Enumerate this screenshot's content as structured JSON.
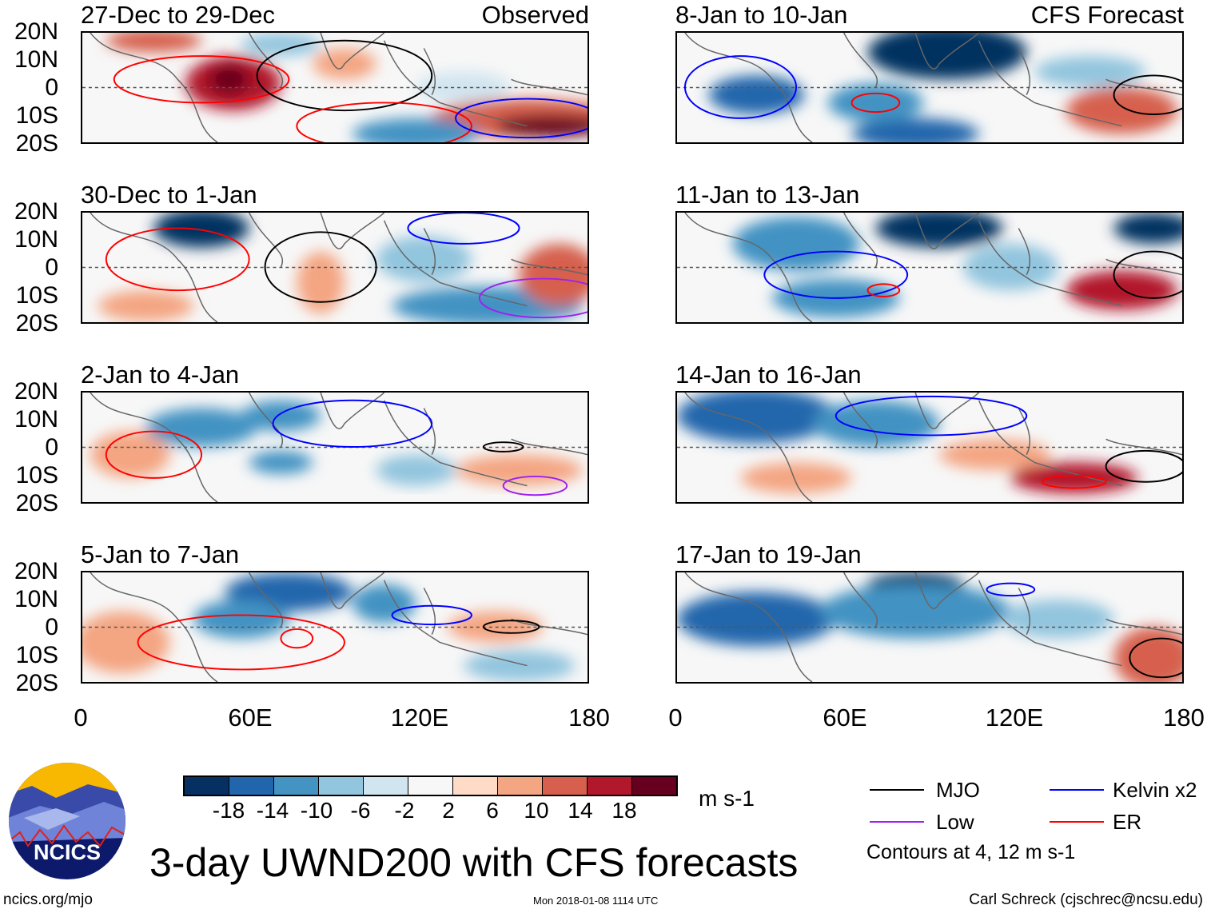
{
  "observed_label": "Observed",
  "forecast_label": "CFS Forecast",
  "panels_left": [
    {
      "title": "27-Dec to 29-Dec"
    },
    {
      "title": "30-Dec to 1-Jan"
    },
    {
      "title": "2-Jan to 4-Jan"
    },
    {
      "title": "5-Jan to 7-Jan"
    }
  ],
  "panels_right": [
    {
      "title": "8-Jan to 10-Jan"
    },
    {
      "title": "11-Jan to 13-Jan"
    },
    {
      "title": "14-Jan to 16-Jan"
    },
    {
      "title": "17-Jan to 19-Jan"
    }
  ],
  "lat_labels": [
    "20N",
    "10N",
    "0",
    "10S",
    "20S"
  ],
  "lon_labels": [
    "0",
    "60E",
    "120E",
    "180"
  ],
  "colorbar": {
    "colors": [
      "#053061",
      "#2166ac",
      "#4393c3",
      "#92c5de",
      "#d1e5f0",
      "#f7f7f7",
      "#fddbc7",
      "#f4a582",
      "#d6604d",
      "#b2182b",
      "#67001f"
    ],
    "labels": [
      "-18",
      "-14",
      "-10",
      "-6",
      "-2",
      "2",
      "6",
      "10",
      "14",
      "18"
    ],
    "units": "m s-1"
  },
  "legend": {
    "items": [
      {
        "label": "MJO",
        "color": "#000000"
      },
      {
        "label": "Kelvin x2",
        "color": "#0000ff"
      },
      {
        "label": "Low",
        "color": "#a020f0"
      },
      {
        "label": "ER",
        "color": "#ff0000"
      }
    ],
    "note": "Contours at 4, 12 m s-1"
  },
  "logo_text": "NCICS",
  "main_title": "3-day UWND200 with CFS forecasts",
  "footer": {
    "url": "ncics.org/mjo",
    "timestamp": "Mon 2018-01-08 1114 UTC",
    "author": "Carl Schreck (cjschrec@ncsu.edu)"
  }
}
